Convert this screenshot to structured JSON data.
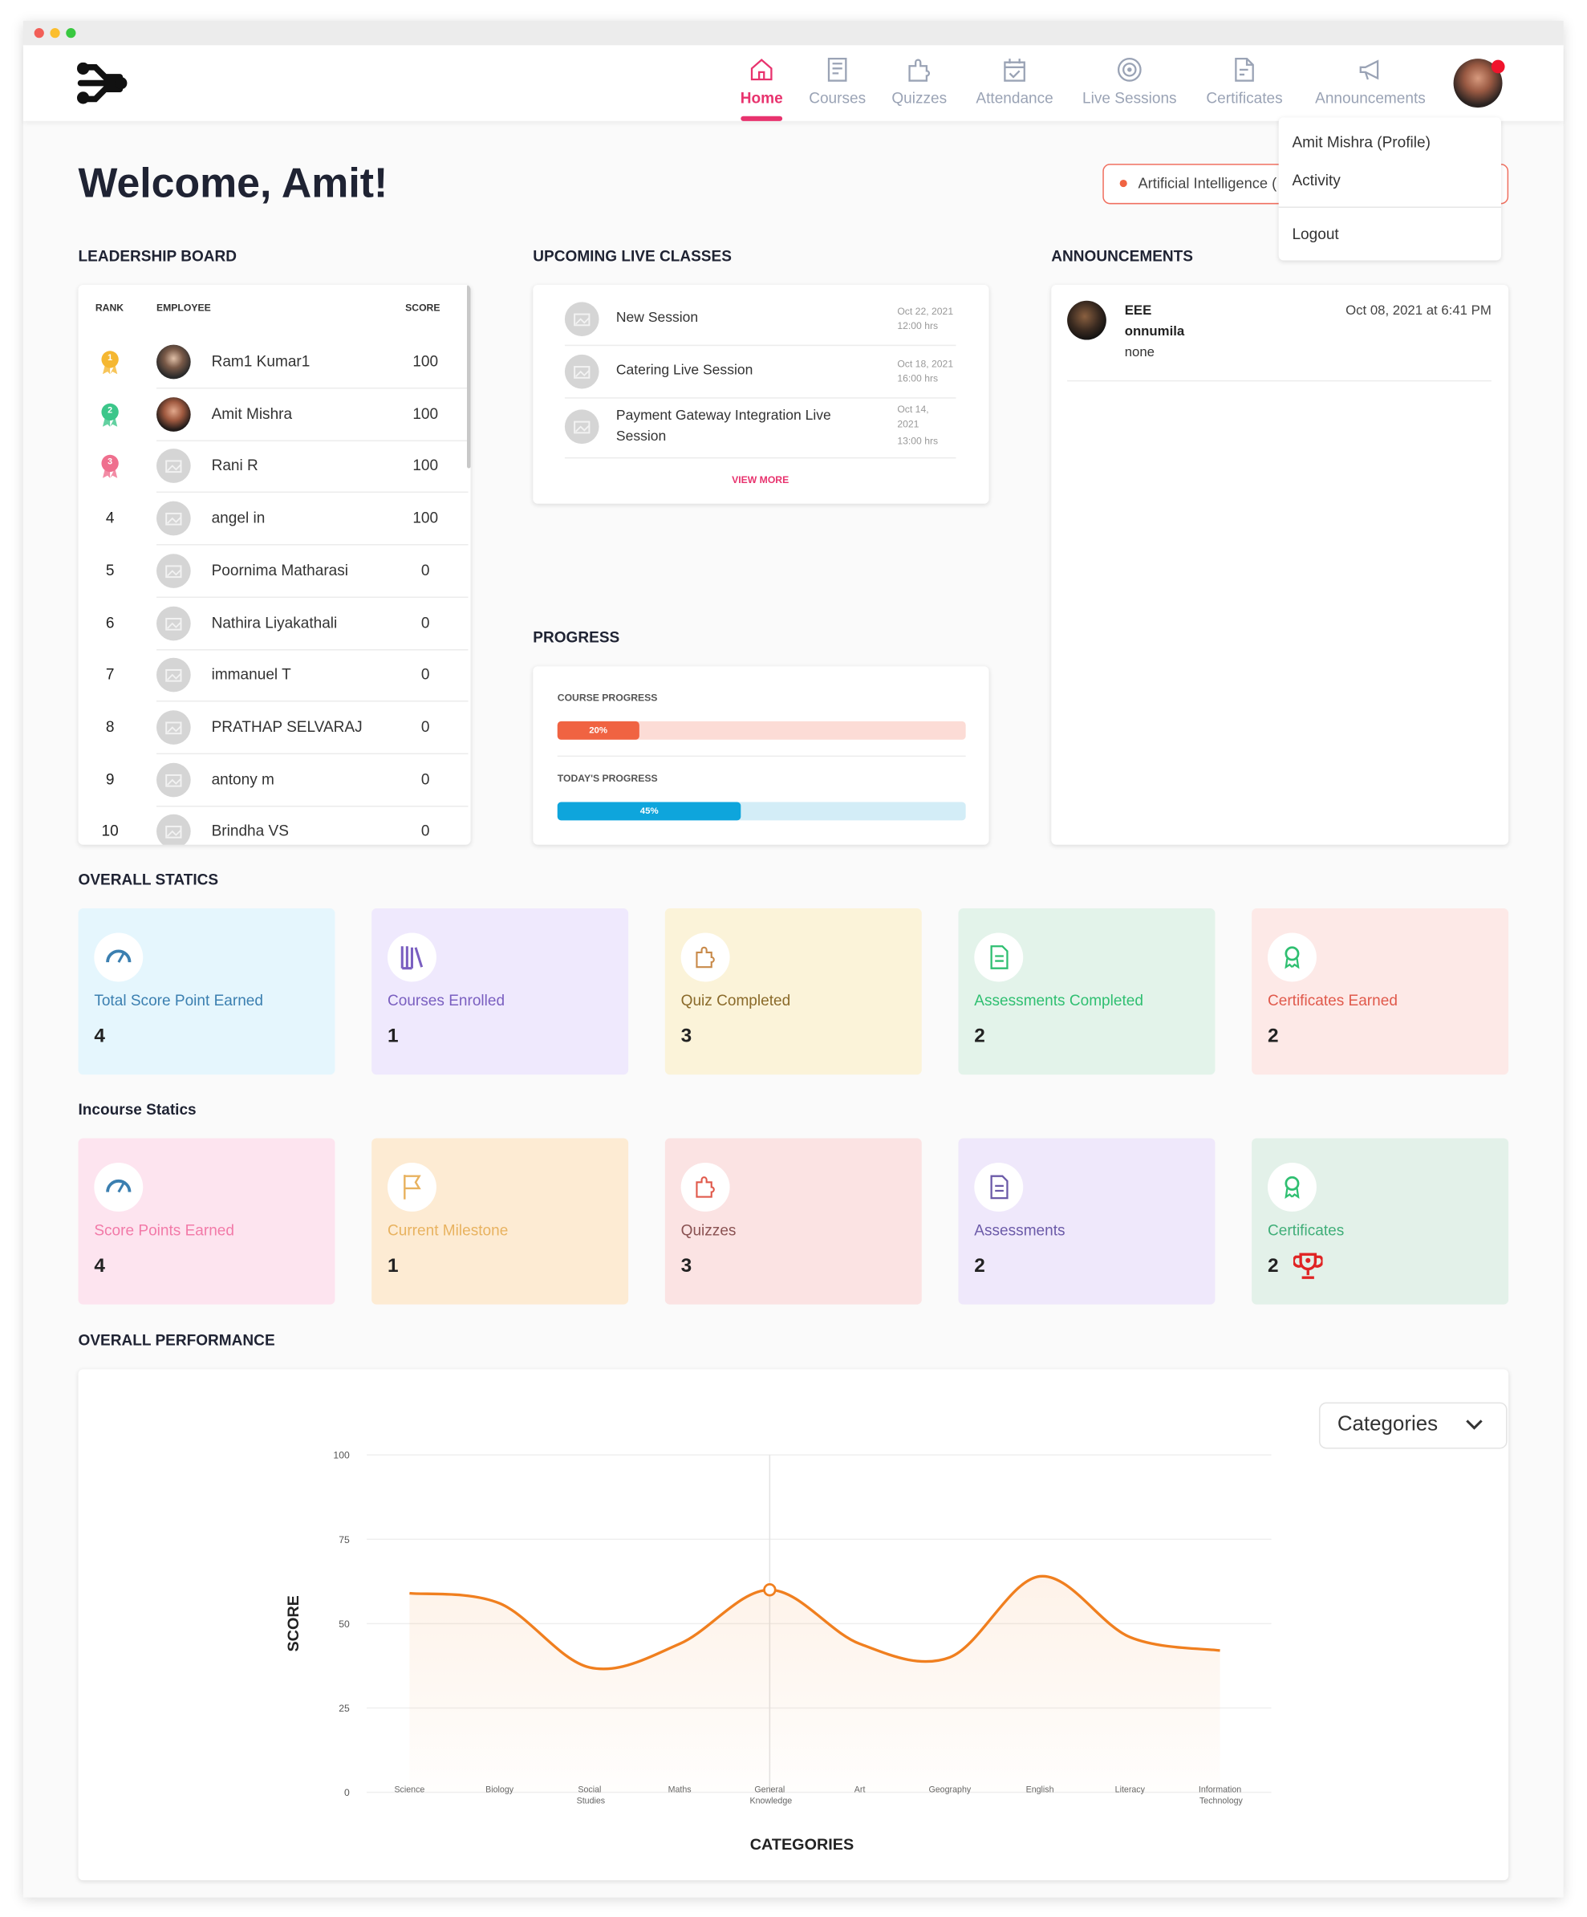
{
  "nav": {
    "items": [
      "Home",
      "Courses",
      "Quizzes",
      "Attendance",
      "Live Sessions",
      "Certificates",
      "Announcements"
    ]
  },
  "dropdown": {
    "items": [
      "Amit Mishra (Profile)",
      "Activity",
      "Logout"
    ]
  },
  "welcome": "Welcome, Amit!",
  "course_select": "Artificial Intelligence (",
  "leaderboard": {
    "title": "LEADERSHIP BOARD",
    "headers": [
      "RANK",
      "EMPLOYEE",
      "SCORE"
    ],
    "rows": [
      {
        "rank": 1,
        "name": "Ram1 Kumar1",
        "score": 100
      },
      {
        "rank": 2,
        "name": "Amit Mishra",
        "score": 100
      },
      {
        "rank": 3,
        "name": "Rani R",
        "score": 100
      },
      {
        "rank": 4,
        "name": "angel in",
        "score": 100
      },
      {
        "rank": 5,
        "name": "Poornima Matharasi",
        "score": 0
      },
      {
        "rank": 6,
        "name": "Nathira Liyakathali",
        "score": 0
      },
      {
        "rank": 7,
        "name": "immanuel T",
        "score": 0
      },
      {
        "rank": 8,
        "name": "PRATHAP SELVARAJ",
        "score": 0
      },
      {
        "rank": 9,
        "name": "antony m",
        "score": 0
      },
      {
        "rank": 10,
        "name": "Brindha VS",
        "score": 0
      }
    ]
  },
  "live_classes": {
    "title": "UPCOMING LIVE CLASSES",
    "sessions": [
      {
        "name": "New Session",
        "date": "Oct 22, 2021",
        "time": "12:00 hrs"
      },
      {
        "name": "Catering Live Session",
        "date": "Oct 18, 2021",
        "time": "16:00 hrs"
      },
      {
        "name": "Payment Gateway Integration Live Session",
        "date": "Oct 14, 2021",
        "time": "13:00 hrs"
      }
    ],
    "more": "VIEW MORE"
  },
  "progress": {
    "title": "PROGRESS",
    "bars": [
      {
        "label": "COURSE PROGRESS",
        "value": 20,
        "value_label": "20%"
      },
      {
        "label": "TODAY'S PROGRESS",
        "value": 45,
        "value_label": "45%"
      }
    ]
  },
  "announcements": {
    "title": "ANNOUNCEMENTS",
    "items": [
      {
        "title": "EEE",
        "author": "onnumila",
        "body": "none",
        "date": "Oct 08, 2021 at 6:41 PM"
      }
    ]
  },
  "overall_statics": {
    "title": "OVERALL STATICS",
    "cards": [
      {
        "label": "Total Score Point Earned",
        "value": 4
      },
      {
        "label": "Courses Enrolled",
        "value": 1
      },
      {
        "label": "Quiz Completed",
        "value": 3
      },
      {
        "label": "Assessments Completed",
        "value": 2
      },
      {
        "label": "Certificates Earned",
        "value": 2
      }
    ]
  },
  "incourse_statics": {
    "title": "Incourse Statics",
    "cards": [
      {
        "label": "Score Points Earned",
        "value": 4
      },
      {
        "label": "Current Milestone",
        "value": 1
      },
      {
        "label": "Quizzes",
        "value": 3
      },
      {
        "label": "Assessments",
        "value": 2
      },
      {
        "label": "Certificates",
        "value": 2
      }
    ]
  },
  "performance": {
    "title": "OVERALL PERFORMANCE",
    "filter": "Categories"
  },
  "chart_data": {
    "type": "line",
    "xlabel": "CATEGORIES",
    "ylabel": "SCORE",
    "categories": [
      "Science",
      "Biology",
      "Social Studies",
      "Maths",
      "General Knowledge",
      "Art",
      "Geography",
      "English",
      "Literacy",
      "Information Technology"
    ],
    "values": [
      59,
      56,
      37,
      44,
      60,
      44,
      40,
      64,
      46,
      42
    ],
    "ylim": [
      0,
      100
    ],
    "yticks": [
      0,
      25,
      50,
      75,
      100
    ],
    "color": "#f07f1f",
    "grid": true
  }
}
